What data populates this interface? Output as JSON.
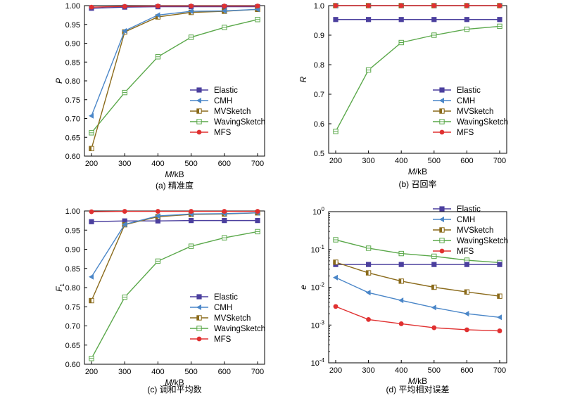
{
  "colors": {
    "Elastic": "#4b3f9e",
    "CMH": "#4a86c8",
    "MVSketch": "#8a6a1a",
    "WavingSketch": "#5aa84a",
    "MFS": "#e03030"
  },
  "chart_data": [
    {
      "type": "line",
      "caption": "(a) 精准度",
      "xlabel_italic": "M",
      "xlabel_unit": "/kB",
      "ylabel": "P",
      "ylim": [
        0.6,
        1.0
      ],
      "yticks": [
        "0.60",
        "0.65",
        "0.70",
        "0.75",
        "0.80",
        "0.85",
        "0.90",
        "0.95",
        "1.00"
      ],
      "x": [
        200,
        300,
        400,
        500,
        600,
        700
      ],
      "legend": "bottom-right",
      "series": [
        {
          "name": "Elastic",
          "marker": "square",
          "values": [
            0.993,
            0.996,
            0.997,
            0.997,
            0.997,
            0.997
          ]
        },
        {
          "name": "CMH",
          "marker": "triangle-left",
          "values": [
            0.707,
            0.933,
            0.975,
            0.985,
            0.986,
            0.99
          ]
        },
        {
          "name": "MVSketch",
          "marker": "half-square",
          "values": [
            0.62,
            0.93,
            0.97,
            0.982,
            0.985,
            0.99
          ]
        },
        {
          "name": "WavingSketch",
          "marker": "box",
          "values": [
            0.662,
            0.769,
            0.864,
            0.916,
            0.942,
            0.963
          ]
        },
        {
          "name": "MFS",
          "marker": "circle",
          "values": [
            0.996,
            0.998,
            0.999,
            0.999,
            0.999,
            0.999
          ]
        }
      ]
    },
    {
      "type": "line",
      "caption": "(b) 召回率",
      "xlabel_italic": "M",
      "xlabel_unit": "/kB",
      "ylabel": "R",
      "ylim": [
        0.5,
        1.0
      ],
      "yticks": [
        "0.5",
        "0.6",
        "0.7",
        "0.8",
        "0.9",
        "1.0"
      ],
      "x": [
        200,
        300,
        400,
        500,
        600,
        700
      ],
      "legend": "middle-right",
      "series": [
        {
          "name": "Elastic",
          "marker": "square",
          "values": [
            0.953,
            0.953,
            0.953,
            0.953,
            0.953,
            0.953
          ]
        },
        {
          "name": "CMH",
          "marker": "triangle-left",
          "values": [
            1.0,
            1.0,
            1.0,
            1.0,
            1.0,
            1.0
          ]
        },
        {
          "name": "MVSketch",
          "marker": "half-square",
          "values": [
            1.0,
            1.0,
            1.0,
            1.0,
            1.0,
            1.0
          ]
        },
        {
          "name": "WavingSketch",
          "marker": "box",
          "values": [
            0.574,
            0.782,
            0.875,
            0.9,
            0.92,
            0.93
          ]
        },
        {
          "name": "MFS",
          "marker": "circle",
          "values": [
            1.0,
            1.0,
            1.0,
            1.0,
            1.0,
            1.0
          ]
        }
      ]
    },
    {
      "type": "line",
      "caption": "(c) 调和平均数",
      "xlabel_italic": "M",
      "xlabel_unit": "/kB",
      "ylabel": "F",
      "ylabel_sub": "1",
      "ylim": [
        0.6,
        1.0
      ],
      "yticks": [
        "0.60",
        "0.65",
        "0.70",
        "0.75",
        "0.80",
        "0.85",
        "0.90",
        "0.95",
        "1.00"
      ],
      "x": [
        200,
        300,
        400,
        500,
        600,
        700
      ],
      "legend": "bottom-right",
      "series": [
        {
          "name": "Elastic",
          "marker": "square",
          "values": [
            0.972,
            0.974,
            0.974,
            0.975,
            0.975,
            0.975
          ]
        },
        {
          "name": "CMH",
          "marker": "triangle-left",
          "values": [
            0.828,
            0.965,
            0.987,
            0.992,
            0.993,
            0.995
          ]
        },
        {
          "name": "MVSketch",
          "marker": "half-square",
          "values": [
            0.766,
            0.964,
            0.985,
            0.991,
            0.992,
            0.995
          ]
        },
        {
          "name": "WavingSketch",
          "marker": "box",
          "values": [
            0.615,
            0.775,
            0.869,
            0.908,
            0.93,
            0.946
          ]
        },
        {
          "name": "MFS",
          "marker": "circle",
          "values": [
            0.998,
            0.999,
            0.999,
            0.999,
            0.999,
            0.999
          ]
        }
      ]
    },
    {
      "type": "line",
      "caption": "(d) 平均相对误差",
      "xlabel_italic": "M",
      "xlabel_unit": "/kB",
      "ylabel": "e",
      "yscale": "log",
      "ylim": [
        0.0001,
        1
      ],
      "yticks_base": "10",
      "yticks_exp": [
        "-4",
        "-3",
        "-2",
        "-1",
        "0"
      ],
      "x": [
        200,
        300,
        400,
        500,
        600,
        700
      ],
      "legend": "top-right",
      "series": [
        {
          "name": "Elastic",
          "marker": "square",
          "values": [
            0.04,
            0.04,
            0.04,
            0.04,
            0.04,
            0.04
          ]
        },
        {
          "name": "CMH",
          "marker": "triangle-left",
          "values": [
            0.018,
            0.0072,
            0.0045,
            0.0029,
            0.002,
            0.0016
          ]
        },
        {
          "name": "MVSketch",
          "marker": "half-square",
          "values": [
            0.046,
            0.024,
            0.0145,
            0.01,
            0.0075,
            0.0058
          ]
        },
        {
          "name": "WavingSketch",
          "marker": "box",
          "values": [
            0.18,
            0.108,
            0.078,
            0.066,
            0.052,
            0.045
          ]
        },
        {
          "name": "MFS",
          "marker": "circle",
          "values": [
            0.0031,
            0.0014,
            0.00108,
            0.00085,
            0.00075,
            0.0007
          ]
        }
      ]
    }
  ]
}
